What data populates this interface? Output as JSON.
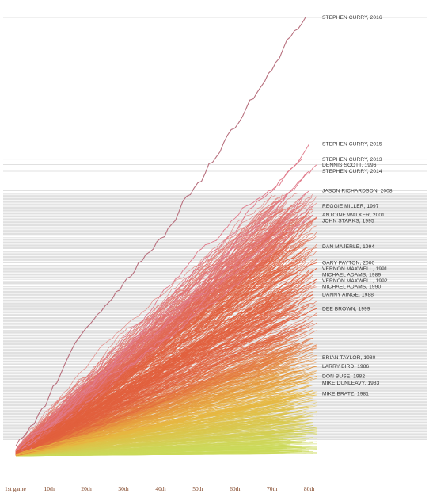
{
  "chart_data": {
    "type": "line",
    "title": "",
    "xlabel": "",
    "ylabel": "",
    "x": {
      "ticks": [
        1,
        10,
        20,
        30,
        40,
        50,
        60,
        70,
        80
      ],
      "tick_labels": [
        "1st game",
        "10th",
        "20th",
        "30th",
        "40th",
        "50th",
        "60th",
        "70th",
        "80th"
      ],
      "range": [
        1,
        82
      ]
    },
    "y": {
      "range": [
        0,
        402
      ],
      "gridlines": true,
      "labels_shown": false
    },
    "colors": {
      "low": "#cbd95a",
      "mid": "#e8b640",
      "high": "#e2603e",
      "top": "#e07a8a",
      "curry_2016": "#b8707e",
      "grid": "#bbbbbb",
      "tick_text": "#7a3a1a",
      "label_text": "#333333"
    },
    "highlighted_series": [
      {
        "name": "STEPHEN CURRY, 2016",
        "games": 79,
        "final_value": 402
      },
      {
        "name": "STEPHEN CURRY, 2015",
        "games": 80,
        "final_value": 286
      },
      {
        "name": "STEPHEN CURRY, 2013",
        "games": 78,
        "final_value": 272
      },
      {
        "name": "DENNIS SCOTT, 1996",
        "games": 82,
        "final_value": 267
      },
      {
        "name": "STEPHEN CURRY, 2014",
        "games": 80,
        "final_value": 261
      },
      {
        "name": "JASON RICHARDSON, 2008",
        "games": 80,
        "final_value": 243
      },
      {
        "name": "REGGIE MILLER, 1997",
        "games": 81,
        "final_value": 229
      },
      {
        "name": "ANTOINE WALKER, 2001",
        "games": 81,
        "final_value": 221
      },
      {
        "name": "JOHN STARKS, 1995",
        "games": 80,
        "final_value": 217
      },
      {
        "name": "DAN MAJERLE, 1994",
        "games": 80,
        "final_value": 192
      },
      {
        "name": "GARY PAYTON, 2000",
        "games": 82,
        "final_value": 177
      },
      {
        "name": "VERNON MAXWELL, 1991",
        "games": 82,
        "final_value": 172
      },
      {
        "name": "MICHAEL ADAMS, 1989",
        "games": 77,
        "final_value": 166
      },
      {
        "name": "VERNON MAXWELL, 1992",
        "games": 82,
        "final_value": 162
      },
      {
        "name": "MICHAEL ADAMS, 1990",
        "games": 66,
        "final_value": 158
      },
      {
        "name": "DANNY AINGE, 1988",
        "games": 81,
        "final_value": 148
      },
      {
        "name": "DEE BROWN, 1999",
        "games": 82,
        "final_value": 135
      },
      {
        "name": "BRIAN TAYLOR, 1980",
        "games": 78,
        "final_value": 90
      },
      {
        "name": "LARRY BIRD, 1986",
        "games": 82,
        "final_value": 82
      },
      {
        "name": "DON BUSE, 1982",
        "games": 82,
        "final_value": 73
      },
      {
        "name": "MIKE DUNLEAVY, 1983",
        "games": 80,
        "final_value": 67
      },
      {
        "name": "MIKE BRATZ, 1981",
        "games": 80,
        "final_value": 57
      }
    ],
    "background_series_count": 750
  }
}
